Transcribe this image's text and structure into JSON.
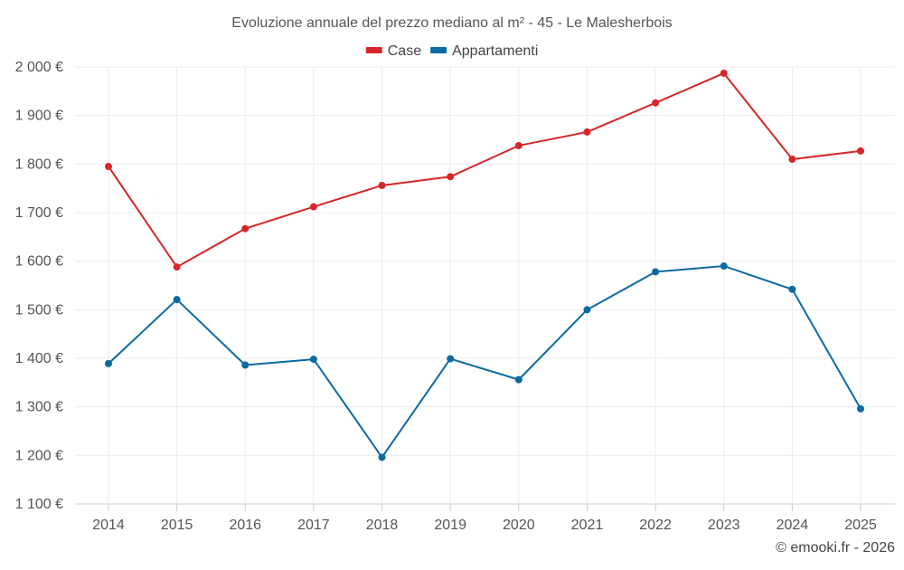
{
  "chart_data": {
    "type": "line",
    "title": "Evoluzione annuale del prezzo mediano al m² - 45 - Le Malesherbois",
    "xlabel": "",
    "ylabel": "",
    "categories": [
      "2014",
      "2015",
      "2016",
      "2017",
      "2018",
      "2019",
      "2020",
      "2021",
      "2022",
      "2023",
      "2024",
      "2025"
    ],
    "ylim": [
      1100,
      2000
    ],
    "y_ticks": [
      1100,
      1200,
      1300,
      1400,
      1500,
      1600,
      1700,
      1800,
      1900,
      2000
    ],
    "y_tick_labels": [
      "1 100 €",
      "1 200 €",
      "1 300 €",
      "1 400 €",
      "1 500 €",
      "1 600 €",
      "1 700 €",
      "1 800 €",
      "1 900 €",
      "2 000 €"
    ],
    "grid": true,
    "legend_position": "top-center",
    "series": [
      {
        "name": "Case",
        "color": "#d62728",
        "values": [
          1795,
          1588,
          1667,
          1712,
          1756,
          1774,
          1838,
          1866,
          1926,
          1987,
          1810,
          1827
        ]
      },
      {
        "name": "Appartamenti",
        "color": "#0b6aa2",
        "values": [
          1389,
          1521,
          1386,
          1398,
          1196,
          1399,
          1356,
          1500,
          1578,
          1590,
          1542,
          1296
        ]
      }
    ]
  },
  "credit": "© emooki.fr - 2026"
}
